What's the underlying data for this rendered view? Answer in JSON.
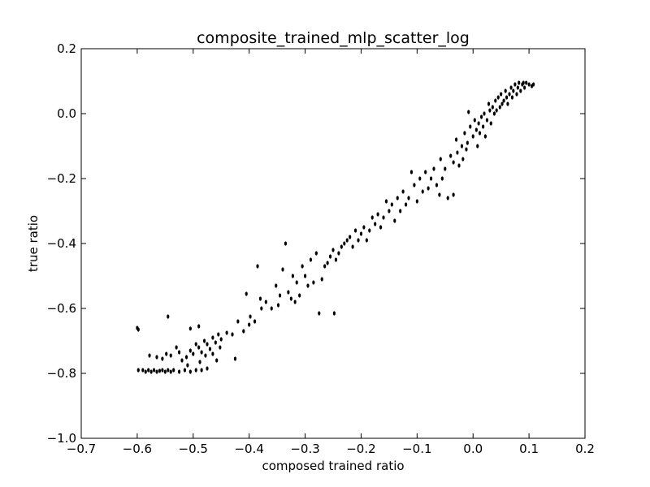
{
  "chart_data": {
    "type": "scatter",
    "title": "composite_trained_mlp_scatter_log",
    "xlabel": "composed trained ratio",
    "ylabel": "true ratio",
    "xlim": [
      -0.7,
      0.2
    ],
    "ylim": [
      -1.0,
      0.2
    ],
    "x_ticks": [
      -0.7,
      -0.6,
      -0.5,
      -0.4,
      -0.3,
      -0.2,
      -0.1,
      0.0,
      0.1,
      0.2
    ],
    "y_ticks": [
      -1.0,
      -0.8,
      -0.6,
      -0.4,
      -0.2,
      0.0,
      0.2
    ],
    "x_tick_labels": [
      "−0.7",
      "−0.6",
      "−0.5",
      "−0.4",
      "−0.3",
      "−0.2",
      "−0.1",
      "0.0",
      "0.1",
      "0.2"
    ],
    "y_tick_labels": [
      "−1.0",
      "−0.8",
      "−0.6",
      "−0.4",
      "−0.2",
      "0.0",
      "0.2"
    ],
    "grid": false,
    "marker_color": "#000000",
    "series": [
      {
        "values": [
          [
            -0.6,
            -0.66
          ],
          [
            -0.598,
            -0.665
          ],
          [
            -0.545,
            -0.625
          ],
          [
            -0.505,
            -0.662
          ],
          [
            -0.49,
            -0.655
          ],
          [
            -0.598,
            -0.79
          ],
          [
            -0.59,
            -0.79
          ],
          [
            -0.585,
            -0.795
          ],
          [
            -0.58,
            -0.79
          ],
          [
            -0.575,
            -0.795
          ],
          [
            -0.57,
            -0.79
          ],
          [
            -0.565,
            -0.795
          ],
          [
            -0.56,
            -0.792
          ],
          [
            -0.555,
            -0.79
          ],
          [
            -0.55,
            -0.795
          ],
          [
            -0.545,
            -0.79
          ],
          [
            -0.54,
            -0.795
          ],
          [
            -0.535,
            -0.79
          ],
          [
            -0.525,
            -0.795
          ],
          [
            -0.515,
            -0.79
          ],
          [
            -0.505,
            -0.795
          ],
          [
            -0.495,
            -0.79
          ],
          [
            -0.485,
            -0.79
          ],
          [
            -0.475,
            -0.785
          ],
          [
            -0.578,
            -0.745
          ],
          [
            -0.565,
            -0.75
          ],
          [
            -0.555,
            -0.755
          ],
          [
            -0.548,
            -0.74
          ],
          [
            -0.54,
            -0.745
          ],
          [
            -0.53,
            -0.72
          ],
          [
            -0.525,
            -0.735
          ],
          [
            -0.52,
            -0.76
          ],
          [
            -0.512,
            -0.75
          ],
          [
            -0.51,
            -0.775
          ],
          [
            -0.505,
            -0.73
          ],
          [
            -0.5,
            -0.74
          ],
          [
            -0.495,
            -0.71
          ],
          [
            -0.49,
            -0.72
          ],
          [
            -0.488,
            -0.765
          ],
          [
            -0.485,
            -0.735
          ],
          [
            -0.48,
            -0.7
          ],
          [
            -0.478,
            -0.745
          ],
          [
            -0.475,
            -0.71
          ],
          [
            -0.47,
            -0.725
          ],
          [
            -0.465,
            -0.74
          ],
          [
            -0.465,
            -0.69
          ],
          [
            -0.46,
            -0.705
          ],
          [
            -0.458,
            -0.76
          ],
          [
            -0.455,
            -0.68
          ],
          [
            -0.452,
            -0.72
          ],
          [
            -0.45,
            -0.695
          ],
          [
            -0.44,
            -0.675
          ],
          [
            -0.43,
            -0.68
          ],
          [
            -0.425,
            -0.755
          ],
          [
            -0.42,
            -0.64
          ],
          [
            -0.41,
            -0.67
          ],
          [
            -0.405,
            -0.555
          ],
          [
            -0.4,
            -0.65
          ],
          [
            -0.398,
            -0.625
          ],
          [
            -0.39,
            -0.64
          ],
          [
            -0.385,
            -0.47
          ],
          [
            -0.38,
            -0.57
          ],
          [
            -0.378,
            -0.6
          ],
          [
            -0.37,
            -0.58
          ],
          [
            -0.36,
            -0.6
          ],
          [
            -0.352,
            -0.53
          ],
          [
            -0.348,
            -0.59
          ],
          [
            -0.345,
            -0.56
          ],
          [
            -0.34,
            -0.48
          ],
          [
            -0.335,
            -0.4
          ],
          [
            -0.33,
            -0.55
          ],
          [
            -0.325,
            -0.57
          ],
          [
            -0.322,
            -0.5
          ],
          [
            -0.318,
            -0.58
          ],
          [
            -0.315,
            -0.52
          ],
          [
            -0.31,
            -0.56
          ],
          [
            -0.305,
            -0.47
          ],
          [
            -0.3,
            -0.5
          ],
          [
            -0.295,
            -0.53
          ],
          [
            -0.29,
            -0.45
          ],
          [
            -0.285,
            -0.52
          ],
          [
            -0.28,
            -0.43
          ],
          [
            -0.275,
            -0.615
          ],
          [
            -0.27,
            -0.51
          ],
          [
            -0.265,
            -0.47
          ],
          [
            -0.26,
            -0.46
          ],
          [
            -0.255,
            -0.44
          ],
          [
            -0.25,
            -0.42
          ],
          [
            -0.248,
            -0.615
          ],
          [
            -0.245,
            -0.45
          ],
          [
            -0.24,
            -0.43
          ],
          [
            -0.235,
            -0.41
          ],
          [
            -0.23,
            -0.4
          ],
          [
            -0.225,
            -0.39
          ],
          [
            -0.22,
            -0.38
          ],
          [
            -0.215,
            -0.41
          ],
          [
            -0.21,
            -0.36
          ],
          [
            -0.205,
            -0.39
          ],
          [
            -0.2,
            -0.37
          ],
          [
            -0.195,
            -0.35
          ],
          [
            -0.19,
            -0.39
          ],
          [
            -0.185,
            -0.36
          ],
          [
            -0.18,
            -0.32
          ],
          [
            -0.175,
            -0.34
          ],
          [
            -0.17,
            -0.31
          ],
          [
            -0.165,
            -0.35
          ],
          [
            -0.16,
            -0.32
          ],
          [
            -0.155,
            -0.27
          ],
          [
            -0.15,
            -0.3
          ],
          [
            -0.145,
            -0.28
          ],
          [
            -0.14,
            -0.33
          ],
          [
            -0.135,
            -0.26
          ],
          [
            -0.13,
            -0.3
          ],
          [
            -0.125,
            -0.24
          ],
          [
            -0.12,
            -0.28
          ],
          [
            -0.115,
            -0.26
          ],
          [
            -0.11,
            -0.18
          ],
          [
            -0.105,
            -0.22
          ],
          [
            -0.1,
            -0.27
          ],
          [
            -0.095,
            -0.2
          ],
          [
            -0.09,
            -0.24
          ],
          [
            -0.085,
            -0.18
          ],
          [
            -0.08,
            -0.23
          ],
          [
            -0.075,
            -0.2
          ],
          [
            -0.07,
            -0.17
          ],
          [
            -0.065,
            -0.22
          ],
          [
            -0.06,
            -0.25
          ],
          [
            -0.058,
            -0.14
          ],
          [
            -0.055,
            -0.2
          ],
          [
            -0.05,
            -0.17
          ],
          [
            -0.045,
            -0.26
          ],
          [
            -0.04,
            -0.13
          ],
          [
            -0.035,
            -0.15
          ],
          [
            -0.035,
            -0.25
          ],
          [
            -0.03,
            -0.08
          ],
          [
            -0.028,
            -0.12
          ],
          [
            -0.025,
            -0.16
          ],
          [
            -0.02,
            -0.1
          ],
          [
            -0.018,
            -0.14
          ],
          [
            -0.015,
            -0.06
          ],
          [
            -0.012,
            -0.11
          ],
          [
            -0.01,
            -0.09
          ],
          [
            -0.008,
            0.005
          ],
          [
            -0.005,
            -0.04
          ],
          [
            0.0,
            -0.07
          ],
          [
            0.003,
            -0.02
          ],
          [
            0.006,
            -0.05
          ],
          [
            0.008,
            -0.1
          ],
          [
            0.01,
            -0.03
          ],
          [
            0.012,
            -0.06
          ],
          [
            0.015,
            -0.01
          ],
          [
            0.018,
            -0.04
          ],
          [
            0.02,
            0.0
          ],
          [
            0.022,
            -0.07
          ],
          [
            0.025,
            -0.02
          ],
          [
            0.028,
            0.03
          ],
          [
            0.03,
            0.01
          ],
          [
            0.032,
            -0.03
          ],
          [
            0.035,
            0.02
          ],
          [
            0.038,
            0.0
          ],
          [
            0.04,
            0.04
          ],
          [
            0.042,
            0.01
          ],
          [
            0.045,
            0.05
          ],
          [
            0.048,
            0.02
          ],
          [
            0.05,
            0.06
          ],
          [
            0.052,
            0.03
          ],
          [
            0.055,
            0.04
          ],
          [
            0.058,
            0.07
          ],
          [
            0.06,
            0.05
          ],
          [
            0.062,
            0.03
          ],
          [
            0.065,
            0.06
          ],
          [
            0.068,
            0.08
          ],
          [
            0.07,
            0.05
          ],
          [
            0.072,
            0.07
          ],
          [
            0.075,
            0.09
          ],
          [
            0.078,
            0.06
          ],
          [
            0.08,
            0.08
          ],
          [
            0.082,
            0.095
          ],
          [
            0.085,
            0.07
          ],
          [
            0.088,
            0.09
          ],
          [
            0.09,
            0.095
          ],
          [
            0.092,
            0.08
          ],
          [
            0.095,
            0.095
          ],
          [
            0.1,
            0.09
          ],
          [
            0.105,
            0.085
          ],
          [
            0.108,
            0.09
          ]
        ]
      }
    ]
  }
}
